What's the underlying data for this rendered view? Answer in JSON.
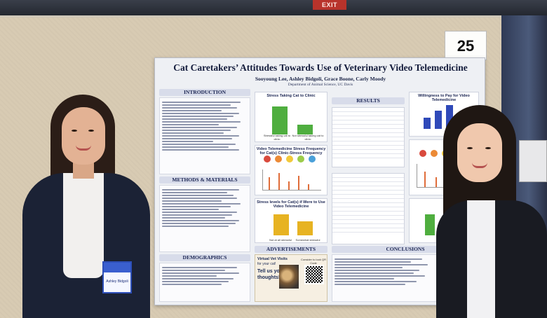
{
  "scene": {
    "exit_sign": "EXIT",
    "board_number": "25"
  },
  "poster": {
    "title": "Cat Caretakers’ Attitudes Towards Use of Veterinary Video Telemedicine",
    "authors": "Sooyoung Lee, Ashley Bidgoli, Grace Boone, Carly Moody",
    "department": "Department of Animal Science, UC Davis",
    "sections": {
      "introduction": "INTRODUCTION",
      "methods": "METHODS & MATERIALS",
      "demographics": "DEMOGRAPHICS",
      "results": "RESULTS",
      "advertisements": "ADVERTISEMENTS",
      "conclusions": "CONCLUSIONS"
    },
    "charts": {
      "stress_taking_cat": "Stress Taking Cat to Clinic",
      "stress_labels": [
        "Stressful taking cat to clinic",
        "Not stressful taking cat to clinic"
      ],
      "stress_levels_title": "Stress levels for Cat(s) if Were to Use Video Telemedicine",
      "stress_levels_labels": [
        "Not at all stressful",
        "Somewhat stressful"
      ],
      "willingness_to_pay": "Willingness to Pay for Video Telemedicine",
      "video_telemed_stress": "Video Telemedicine Stress Frequency for Cat(s) Clinic-Stress Frequency"
    },
    "ads": {
      "line1": "Virtual Vet Visits",
      "line2": "for your cat!",
      "line3": "Tell us your",
      "line4": "thoughts!",
      "qr_caption": "Consider to look QR Code"
    },
    "colors": {
      "poster_bg": "#eef0f4",
      "header_band": "#d8dcea",
      "chart_green": "#4fae3f",
      "chart_blue": "#2f49b9",
      "chart_yellow": "#e7b322"
    }
  },
  "badge": {
    "name": "Ashley Bidgoli"
  }
}
